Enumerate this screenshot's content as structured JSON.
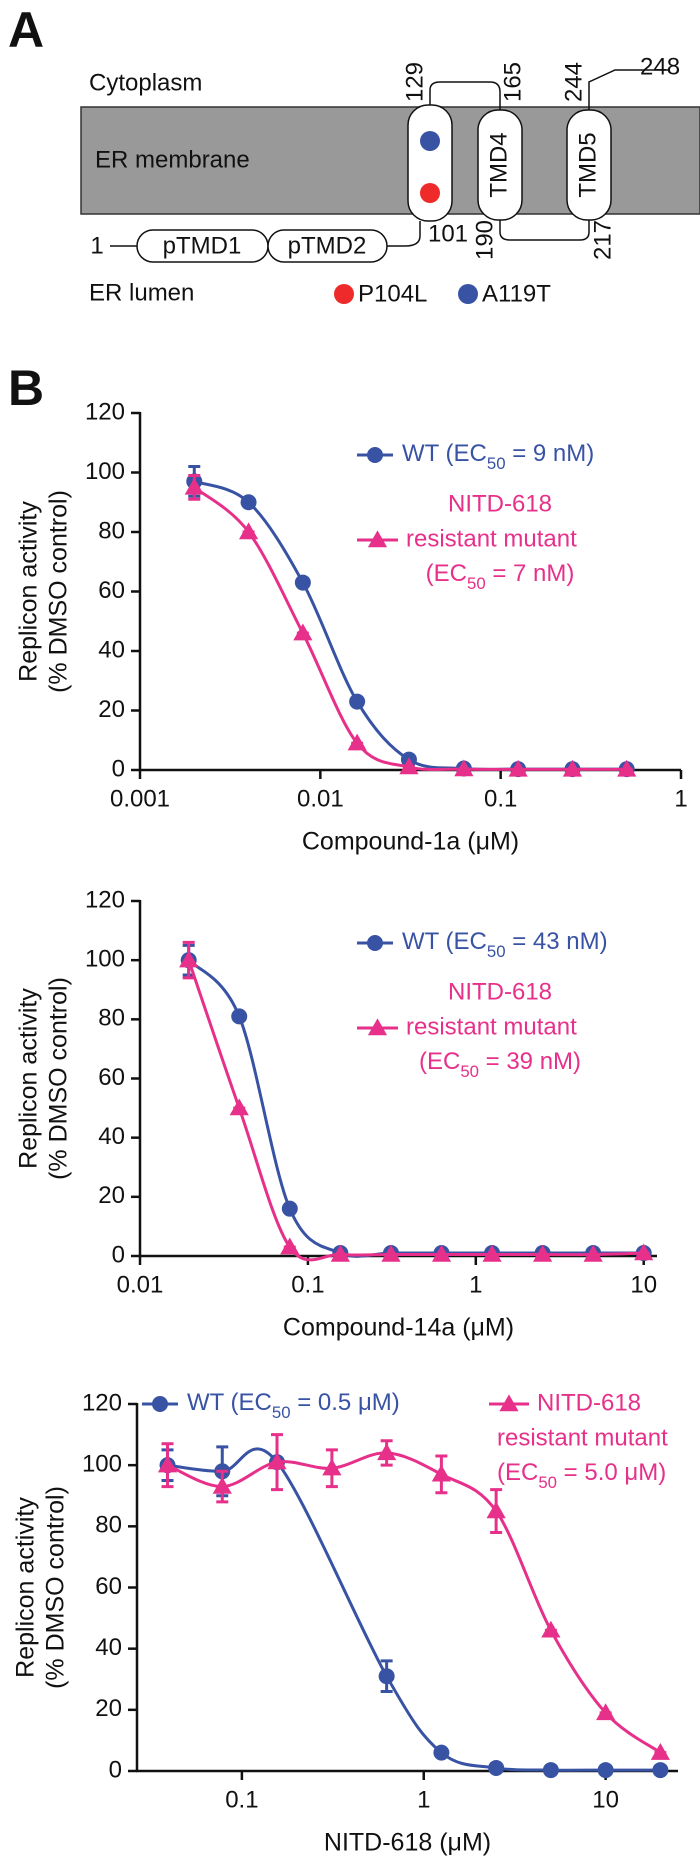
{
  "panel_a": {
    "label": "A",
    "cytoplasm": "Cytoplasm",
    "membrane": "ER membrane",
    "lumen": "ER lumen",
    "domains": [
      "pTMD1",
      "pTMD2",
      "TMD4",
      "TMD5"
    ],
    "residues": [
      "1",
      "101",
      "129",
      "165",
      "190",
      "217",
      "244",
      "248"
    ],
    "mutations": [
      {
        "name": "P104L",
        "color": "#ee2a2a"
      },
      {
        "name": "A119T",
        "color": "#3953a4"
      }
    ]
  },
  "panel_b_label": "B",
  "chart_data": [
    {
      "type": "line",
      "x_label": "Compound-1a (μM)",
      "y_label": [
        "Replicon activity",
        "(% DMSO control)"
      ],
      "xscale": "log",
      "xlim": [
        0.001,
        1
      ],
      "xticks": [
        0.001,
        0.01,
        0.1,
        1
      ],
      "ylim": [
        0,
        120
      ],
      "yticks": [
        0,
        20,
        40,
        60,
        80,
        100,
        120
      ],
      "legend": "upper right",
      "series": [
        {
          "name": [
            "WT (EC50 = 9 nM)"
          ],
          "color": "#3953a4",
          "marker": "circle",
          "x": [
            0.002,
            0.004,
            0.008,
            0.016,
            0.031,
            0.0625,
            0.125,
            0.25,
            0.5
          ],
          "values": [
            97,
            90,
            63,
            23,
            3.5,
            0.5,
            0.3,
            0.3,
            0.3
          ],
          "errors": [
            5,
            0,
            0,
            0,
            0,
            0,
            0,
            0,
            0
          ]
        },
        {
          "name": [
            "NITD-618",
            "resistant mutant",
            "(EC50 = 7 nM)"
          ],
          "color": "#e6308a",
          "marker": "triangle",
          "x": [
            0.002,
            0.004,
            0.008,
            0.016,
            0.031,
            0.0625,
            0.125,
            0.25,
            0.5
          ],
          "values": [
            95,
            80,
            46,
            9,
            1,
            0.3,
            0.2,
            0.2,
            0.2
          ],
          "errors": [
            4,
            0,
            0,
            0,
            0,
            0,
            0,
            0,
            0
          ]
        }
      ]
    },
    {
      "type": "line",
      "x_label": "Compound-14a (μM)",
      "y_label": [
        "Replicon activity",
        "(% DMSO control)"
      ],
      "xscale": "log",
      "xlim": [
        0.01,
        12
      ],
      "xticks": [
        0.01,
        0.1,
        1,
        10
      ],
      "ylim": [
        0,
        120
      ],
      "yticks": [
        0,
        20,
        40,
        60,
        80,
        100,
        120
      ],
      "legend": "upper right",
      "series": [
        {
          "name": [
            "WT (EC50 = 43 nM)"
          ],
          "color": "#3953a4",
          "marker": "circle",
          "x": [
            0.0195,
            0.039,
            0.078,
            0.156,
            0.3125,
            0.625,
            1.25,
            2.5,
            5,
            10
          ],
          "values": [
            100,
            81,
            16,
            1,
            1,
            1,
            1,
            1,
            1,
            1
          ],
          "errors": [
            5,
            0,
            0,
            0,
            0,
            0,
            0,
            0,
            0,
            0
          ]
        },
        {
          "name": [
            "NITD-618",
            "resistant mutant",
            "(EC50 = 39 nM)"
          ],
          "color": "#e6308a",
          "marker": "triangle",
          "x": [
            0.0195,
            0.039,
            0.078,
            0.156,
            0.3125,
            0.625,
            1.25,
            2.5,
            5,
            10
          ],
          "values": [
            100,
            50,
            3,
            0.5,
            0.5,
            0.5,
            0.5,
            0.5,
            0.5,
            1
          ],
          "errors": [
            6,
            0,
            0,
            0,
            0,
            0,
            0,
            0,
            0,
            0
          ]
        }
      ]
    },
    {
      "type": "line",
      "x_label": "NITD-618 (μM)",
      "y_label": [
        "Replicon activity",
        "(% DMSO control)"
      ],
      "xscale": "log",
      "xlim": [
        0.0265,
        25
      ],
      "xticks": [
        0.1,
        1,
        10
      ],
      "ylim": [
        0,
        120
      ],
      "yticks": [
        0,
        20,
        40,
        60,
        80,
        100,
        120
      ],
      "legend": "top",
      "series": [
        {
          "name": [
            "WT (EC50 = 0.5 μM)"
          ],
          "color": "#3953a4",
          "marker": "circle",
          "x": [
            0.039,
            0.078,
            0.156,
            0.625,
            1.25,
            2.5,
            5,
            10,
            20
          ],
          "values": [
            100,
            98,
            101,
            31,
            6,
            1,
            0.3,
            0.3,
            0.3
          ],
          "errors": [
            5,
            8,
            0,
            5,
            0,
            0,
            0,
            0,
            0
          ]
        },
        {
          "name": [
            "NITD-618",
            "resistant mutant",
            "(EC50 = 5.0 μM)"
          ],
          "color": "#e6308a",
          "marker": "triangle",
          "x": [
            0.039,
            0.078,
            0.156,
            0.3125,
            0.625,
            1.25,
            2.5,
            5,
            10,
            20
          ],
          "values": [
            100,
            93,
            101,
            99,
            104,
            97,
            85,
            46,
            19,
            6
          ],
          "errors": [
            7,
            5,
            9,
            6,
            4,
            6,
            7,
            0,
            0,
            0
          ]
        }
      ]
    }
  ]
}
